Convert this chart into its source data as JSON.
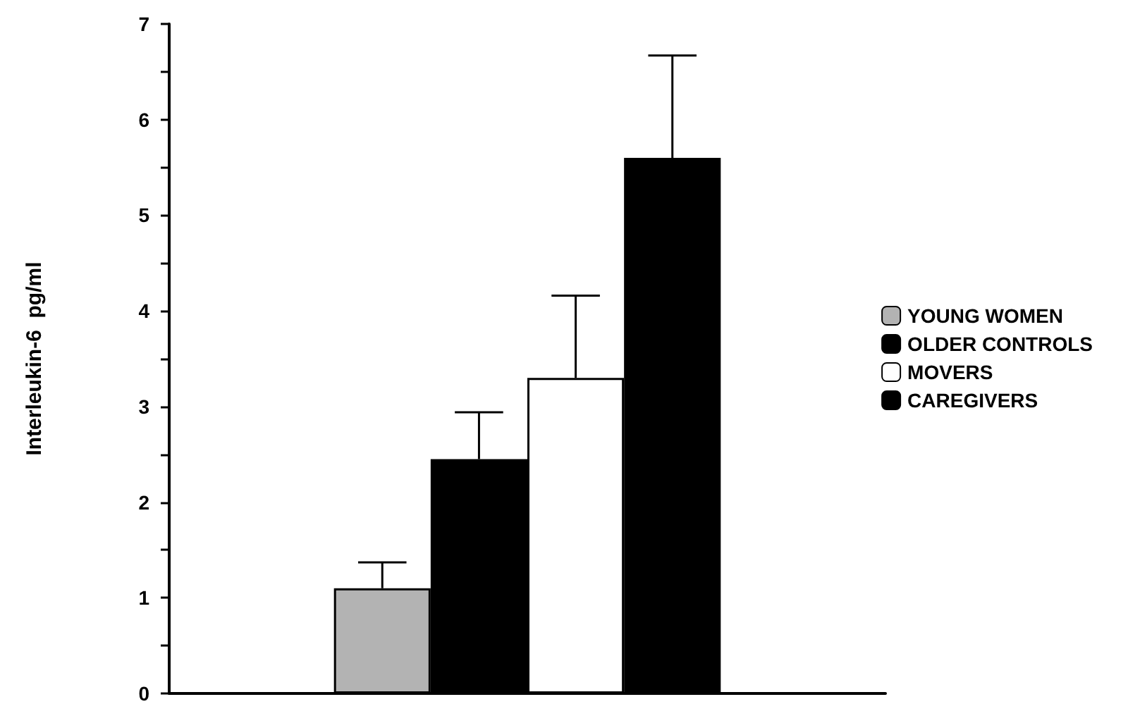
{
  "chart_data": {
    "type": "bar",
    "ylabel": "Interleukin-6  pg/ml",
    "categories": [
      null
    ],
    "series": [
      {
        "name": "YOUNG WOMEN",
        "color": "#b3b3b3",
        "values": [
          1.1
        ],
        "errors": [
          [
            1.1,
            1.37
          ]
        ]
      },
      {
        "name": "OLDER CONTROLS",
        "color": "#000000",
        "values": [
          2.45
        ],
        "errors": [
          [
            2.45,
            2.94
          ]
        ]
      },
      {
        "name": "MOVERS",
        "color": "#ffffff",
        "values": [
          3.3
        ],
        "errors": [
          [
            3.3,
            4.16
          ]
        ]
      },
      {
        "name": "CAREGIVERS",
        "color": "#000000",
        "values": [
          5.6
        ],
        "errors": [
          [
            5.6,
            6.67
          ]
        ]
      }
    ],
    "ylim": [
      0,
      7
    ],
    "yticks": [
      0,
      {
        "value": 0.5,
        "label": null
      },
      1,
      {
        "value": 1.5,
        "label": null
      },
      2,
      {
        "value": 2.5,
        "label": null
      },
      3,
      {
        "value": 3.5,
        "label": null
      },
      4,
      {
        "value": 4.5,
        "label": null
      },
      5,
      {
        "value": 5.5,
        "label": null
      },
      6,
      {
        "value": 6.5,
        "label": null
      },
      7
    ],
    "grid": false,
    "legend": "right"
  }
}
